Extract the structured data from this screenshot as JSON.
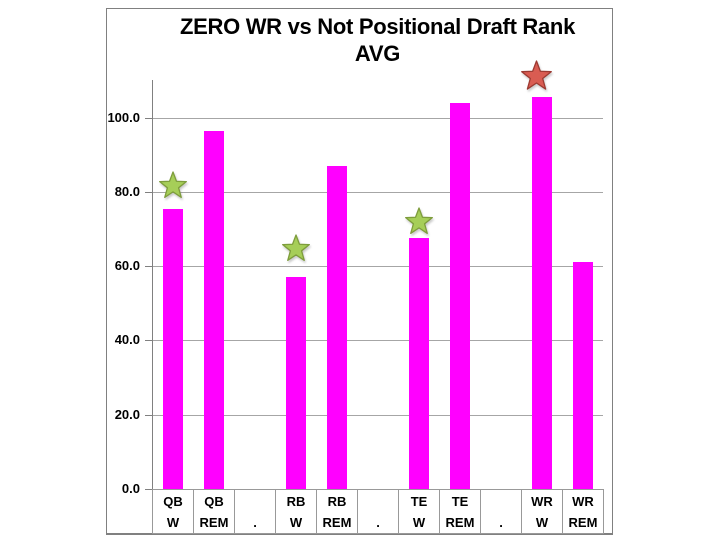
{
  "slide": {
    "background": "#FFFFFF"
  },
  "chart": {
    "title_line1": "ZERO WR vs Not Positional Draft Rank",
    "title_line2": "AVG",
    "frame_border_color": "#808080",
    "gridline_color": "#A6A6A6",
    "axis_color": "#808080",
    "cell_border_color": "#999999",
    "text_color": "#000000"
  },
  "chart_data": {
    "type": "bar",
    "title": "ZERO WR vs Not Positional Draft Rank AVG",
    "xlabel": "",
    "ylabel": "",
    "ylim": [
      0,
      110
    ],
    "grid": true,
    "bar_color": "#FF00FF",
    "yticks": [
      {
        "label": "100.0",
        "value": 100
      },
      {
        "label": "80.0",
        "value": 80
      },
      {
        "label": "60.0",
        "value": 60
      },
      {
        "label": "40.0",
        "value": 40
      },
      {
        "label": "20.0",
        "value": 20
      },
      {
        "label": "0.0",
        "value": 0
      }
    ],
    "categories": [
      {
        "group": "QB",
        "label": "W",
        "value": 75.5
      },
      {
        "group": "QB",
        "label": "REM",
        "value": 96.5
      },
      {
        "group": "",
        "label": ".",
        "value": null
      },
      {
        "group": "RB",
        "label": "W",
        "value": 57
      },
      {
        "group": "RB",
        "label": "REM",
        "value": 87
      },
      {
        "group": "",
        "label": ".",
        "value": null
      },
      {
        "group": "TE",
        "label": "W",
        "value": 67.5
      },
      {
        "group": "TE",
        "label": "REM",
        "value": 104
      },
      {
        "group": "",
        "label": ".",
        "value": null
      },
      {
        "group": "WR",
        "label": "W",
        "value": 105.5
      },
      {
        "group": "WR",
        "label": "REM",
        "value": 61
      }
    ],
    "markers": [
      {
        "category_index": 0,
        "shape": "star",
        "color_key": "green",
        "value": 81.5,
        "size": 28,
        "dx": 0
      },
      {
        "category_index": 3,
        "shape": "star",
        "color_key": "green",
        "value": 64.5,
        "size": 28,
        "dx": 0
      },
      {
        "category_index": 6,
        "shape": "star",
        "color_key": "green",
        "value": 72,
        "size": 28,
        "dx": 0
      },
      {
        "category_index": 9,
        "shape": "star",
        "color_key": "red",
        "value": 111,
        "size": 31,
        "dx": -5
      }
    ],
    "marker_colors": {
      "green": {
        "fill": "#A6CE58",
        "stroke": "#7E9D3C"
      },
      "red": {
        "fill": "#D95C52",
        "stroke": "#9C3A32"
      }
    },
    "legend": null
  }
}
